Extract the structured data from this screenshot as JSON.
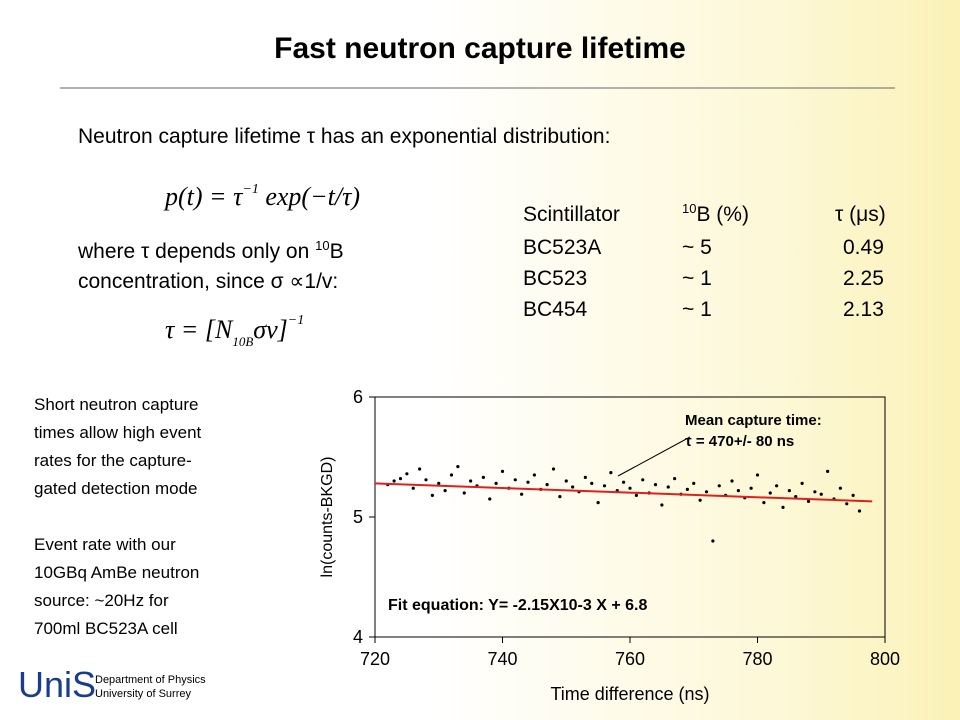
{
  "title": "Fast neutron capture lifetime",
  "intro": "Neutron capture lifetime τ has an exponential distribution:",
  "formula1": [
    "p(t) = τ",
    "−1",
    " exp(−t/τ)"
  ],
  "where": [
    "where τ depends only on ",
    "10",
    "B"
  ],
  "concentration": "concentration, since σ ∝1/v:",
  "formula2": [
    "τ = [N",
    "10B",
    "σν]",
    "−1"
  ],
  "table": {
    "header": [
      "Scintillator",
      "10",
      "B (%)",
      "τ (μs)"
    ],
    "rows": [
      [
        "BC523A",
        "~ 5",
        "0.49"
      ],
      [
        "BC523",
        "~ 1",
        "2.25"
      ],
      [
        "BC454",
        "~ 1",
        "2.13"
      ]
    ]
  },
  "notes": [
    [
      "Short neutron capture",
      "times allow high event",
      "rates for the capture-",
      "gated detection mode"
    ],
    [
      "Event rate with our",
      "10GBq AmBe neutron",
      "source: ~20Hz for",
      "700ml BC523A cell"
    ]
  ],
  "logo": {
    "mark": "UniS",
    "line1": "Department of Physics",
    "line2": "University of Surrey"
  },
  "chart_data": {
    "type": "scatter",
    "x_label": "Time difference (ns)",
    "y_label": "ln(counts-BKGD)",
    "annotation": [
      "Mean capture time:",
      "τ = 470+/- 80 ns"
    ],
    "fit_label": "Fit equation: Y= -2.15X10-3 X + 6.8",
    "xlim": [
      720,
      800
    ],
    "xticks": [
      720,
      740,
      760,
      780,
      800
    ],
    "ylim": [
      4,
      6
    ],
    "yticks": [
      4,
      5,
      6
    ],
    "series": [
      {
        "color": "#000000",
        "x": [
          722,
          723,
          724,
          725,
          726,
          727,
          728,
          729,
          730,
          731,
          732,
          733,
          734,
          735,
          736,
          737,
          738,
          739,
          740,
          741,
          742,
          743,
          744,
          745,
          746,
          747,
          748,
          749,
          750,
          751,
          752,
          753,
          754,
          755,
          756,
          757,
          758,
          759,
          760,
          761,
          762,
          763,
          764,
          765,
          766,
          767,
          768,
          769,
          770,
          771,
          772,
          773,
          774,
          775,
          776,
          777,
          778,
          779,
          780,
          781,
          782,
          783,
          784,
          785,
          786,
          787,
          788,
          789,
          790,
          791,
          792,
          793,
          794,
          795,
          796
        ],
        "values": [
          5.27,
          5.3,
          5.32,
          5.36,
          5.24,
          5.4,
          5.31,
          5.18,
          5.28,
          5.22,
          5.35,
          5.42,
          5.2,
          5.3,
          5.26,
          5.33,
          5.15,
          5.28,
          5.38,
          5.24,
          5.31,
          5.19,
          5.29,
          5.35,
          5.23,
          5.27,
          5.4,
          5.17,
          5.3,
          5.25,
          5.21,
          5.33,
          5.28,
          5.12,
          5.26,
          5.37,
          5.22,
          5.29,
          5.24,
          5.18,
          5.31,
          5.2,
          5.27,
          5.1,
          5.25,
          5.32,
          5.19,
          5.23,
          5.28,
          5.14,
          5.21,
          4.8,
          5.26,
          5.18,
          5.3,
          5.22,
          5.16,
          5.24,
          5.35,
          5.12,
          5.2,
          5.26,
          5.08,
          5.22,
          5.17,
          5.28,
          5.13,
          5.21,
          5.19,
          5.38,
          5.15,
          5.24,
          5.11,
          5.18,
          5.05
        ]
      },
      {
        "color": "#e0201b",
        "x": [
          720,
          798
        ],
        "values": [
          5.28,
          5.13
        ]
      }
    ]
  }
}
